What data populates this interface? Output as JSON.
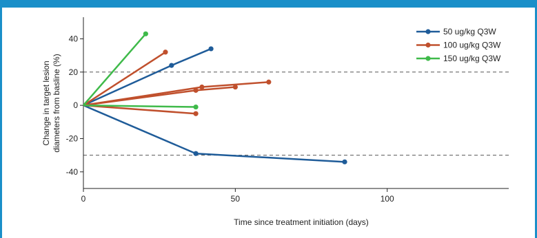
{
  "chart_data": {
    "type": "line",
    "xlabel": "Time since treatment initiation (days)",
    "ylabel_lines": [
      "Change in target lesion",
      "diameters from basline (%)"
    ],
    "xlim": [
      0,
      140
    ],
    "ylim": [
      -50,
      53
    ],
    "xticks": [
      0,
      50,
      100
    ],
    "yticks": [
      40,
      20,
      0,
      -20,
      -40
    ],
    "ytick_labels": [
      "40",
      "20",
      "0",
      "-20",
      "-40"
    ],
    "reference_lines": [
      20,
      -30
    ],
    "grid": false,
    "legend_position": "top-right",
    "series": [
      {
        "name": "50 ug/kg Q3W",
        "color": "#1f5c99",
        "lines": [
          [
            [
              0,
              0
            ],
            [
              29,
              24
            ],
            [
              42,
              34
            ]
          ],
          [
            [
              0,
              0
            ],
            [
              37,
              -29
            ],
            [
              86,
              -34
            ]
          ]
        ]
      },
      {
        "name": "100 ug/kg Q3W",
        "color": "#c0502d",
        "lines": [
          [
            [
              0,
              0
            ],
            [
              27,
              32
            ]
          ],
          [
            [
              0,
              0
            ],
            [
              39,
              11
            ],
            [
              61,
              14
            ]
          ],
          [
            [
              0,
              0
            ],
            [
              37,
              9
            ],
            [
              50,
              11
            ]
          ],
          [
            [
              0,
              0
            ],
            [
              37,
              -5
            ]
          ]
        ]
      },
      {
        "name": "150 ug/kg Q3W",
        "color": "#3fba4a",
        "lines": [
          [
            [
              0,
              0
            ],
            [
              20.5,
              43
            ]
          ],
          [
            [
              0,
              0
            ],
            [
              37,
              -1
            ]
          ]
        ]
      }
    ]
  }
}
